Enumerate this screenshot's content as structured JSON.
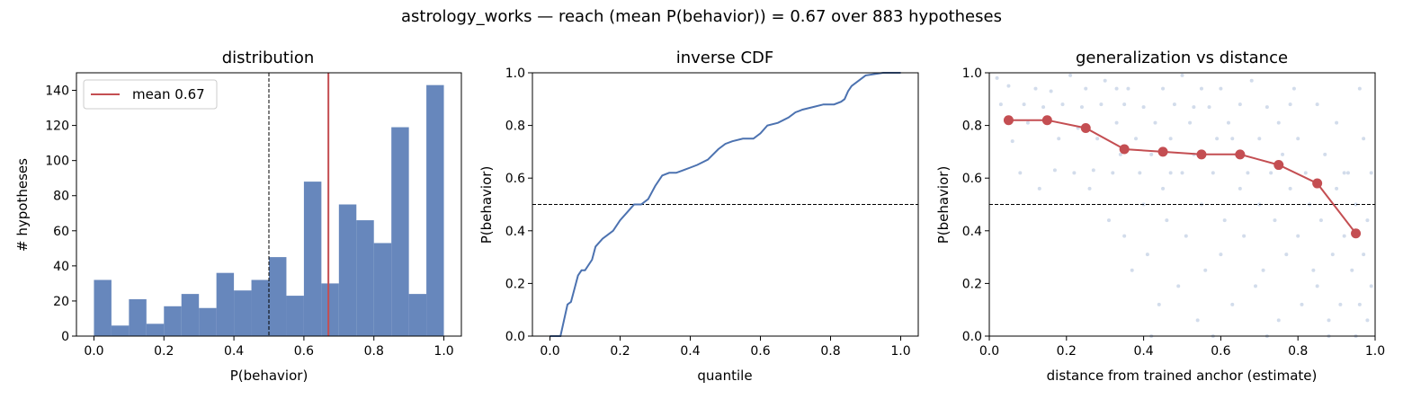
{
  "suptitle": "astrology_works  —  reach (mean P(behavior)) = 0.67  over 883 hypotheses",
  "colors": {
    "bar": "#4c72b0",
    "mean": "#c44e52",
    "line": "#4c72b0",
    "scatter": "#4c72b0",
    "binned": "#c44e52",
    "reference": "#000000"
  },
  "chart_data": [
    {
      "type": "bar",
      "title": "distribution",
      "xlabel": "P(behavior)",
      "ylabel": "# hypotheses",
      "xlim": [
        -0.05,
        1.05
      ],
      "ylim": [
        0,
        150
      ],
      "xticks": [
        "0.0",
        "0.2",
        "0.4",
        "0.6",
        "0.8",
        "1.0"
      ],
      "yticks": [
        "0",
        "20",
        "40",
        "60",
        "80",
        "100",
        "120",
        "140"
      ],
      "bin_edges": [
        0.0,
        0.05,
        0.1,
        0.15,
        0.2,
        0.25,
        0.3,
        0.35,
        0.4,
        0.45,
        0.5,
        0.55,
        0.6,
        0.65,
        0.7,
        0.75,
        0.8,
        0.85,
        0.9,
        0.95,
        1.0
      ],
      "values": [
        32,
        6,
        21,
        7,
        17,
        24,
        16,
        36,
        26,
        32,
        45,
        23,
        88,
        30,
        75,
        66,
        53,
        119,
        24,
        143
      ],
      "reference_line_x": 0.5,
      "mean_line": {
        "x": 0.67,
        "label": "mean 0.67"
      },
      "legend": "top-left",
      "grid": false
    },
    {
      "type": "line",
      "title": "inverse CDF",
      "xlabel": "quantile",
      "ylabel": "P(behavior)",
      "xlim": [
        -0.05,
        1.05
      ],
      "ylim": [
        0,
        1
      ],
      "xticks": [
        "0.0",
        "0.2",
        "0.4",
        "0.6",
        "0.8",
        "1.0"
      ],
      "yticks": [
        "0.0",
        "0.2",
        "0.4",
        "0.6",
        "0.8",
        "1.0"
      ],
      "x": [
        0.0,
        0.03,
        0.04,
        0.05,
        0.06,
        0.07,
        0.08,
        0.09,
        0.1,
        0.12,
        0.13,
        0.15,
        0.16,
        0.18,
        0.2,
        0.22,
        0.24,
        0.26,
        0.28,
        0.3,
        0.32,
        0.34,
        0.36,
        0.38,
        0.4,
        0.42,
        0.45,
        0.48,
        0.5,
        0.52,
        0.55,
        0.58,
        0.6,
        0.62,
        0.65,
        0.68,
        0.7,
        0.72,
        0.75,
        0.78,
        0.81,
        0.83,
        0.84,
        0.85,
        0.86,
        0.88,
        0.9,
        0.95,
        1.0
      ],
      "y": [
        0.0,
        0.0,
        0.06,
        0.12,
        0.13,
        0.18,
        0.23,
        0.25,
        0.25,
        0.29,
        0.34,
        0.37,
        0.38,
        0.4,
        0.44,
        0.47,
        0.5,
        0.5,
        0.52,
        0.57,
        0.61,
        0.62,
        0.62,
        0.63,
        0.64,
        0.65,
        0.67,
        0.71,
        0.73,
        0.74,
        0.75,
        0.75,
        0.77,
        0.8,
        0.81,
        0.83,
        0.85,
        0.86,
        0.87,
        0.88,
        0.88,
        0.89,
        0.9,
        0.93,
        0.95,
        0.97,
        0.99,
        1.0,
        1.0
      ],
      "reference_line_y": 0.5,
      "grid": false
    },
    {
      "type": "scatter",
      "title": "generalization vs distance",
      "xlabel": "distance from trained anchor (estimate)",
      "ylabel": "P(behavior)",
      "xlim": [
        0,
        1
      ],
      "ylim": [
        0,
        1
      ],
      "xticks": [
        "0.0",
        "0.2",
        "0.4",
        "0.6",
        "0.8",
        "1.0"
      ],
      "yticks": [
        "0.0",
        "0.2",
        "0.4",
        "0.6",
        "0.8",
        "1.0"
      ],
      "binned_mean": {
        "x": [
          0.05,
          0.15,
          0.25,
          0.35,
          0.45,
          0.55,
          0.65,
          0.75,
          0.85,
          0.95
        ],
        "y": [
          0.82,
          0.82,
          0.79,
          0.71,
          0.7,
          0.69,
          0.69,
          0.65,
          0.58,
          0.39
        ]
      },
      "scatter_points": [
        [
          0.02,
          0.98
        ],
        [
          0.03,
          0.88
        ],
        [
          0.05,
          0.95
        ],
        [
          0.06,
          0.74
        ],
        [
          0.08,
          0.62
        ],
        [
          0.09,
          0.88
        ],
        [
          0.1,
          0.81
        ],
        [
          0.12,
          0.94
        ],
        [
          0.13,
          0.56
        ],
        [
          0.14,
          0.87
        ],
        [
          0.16,
          0.93
        ],
        [
          0.17,
          0.63
        ],
        [
          0.18,
          0.75
        ],
        [
          0.19,
          0.88
        ],
        [
          0.21,
          0.99
        ],
        [
          0.22,
          0.62
        ],
        [
          0.23,
          0.79
        ],
        [
          0.24,
          0.87
        ],
        [
          0.25,
          0.94
        ],
        [
          0.26,
          0.56
        ],
        [
          0.27,
          0.63
        ],
        [
          0.28,
          0.75
        ],
        [
          0.29,
          0.88
        ],
        [
          0.3,
          0.97
        ],
        [
          0.31,
          0.44
        ],
        [
          0.32,
          0.62
        ],
        [
          0.33,
          0.81
        ],
        [
          0.34,
          0.69
        ],
        [
          0.35,
          0.88
        ],
        [
          0.35,
          0.38
        ],
        [
          0.36,
          0.94
        ],
        [
          0.37,
          0.25
        ],
        [
          0.38,
          0.75
        ],
        [
          0.39,
          0.62
        ],
        [
          0.4,
          0.5
        ],
        [
          0.4,
          0.87
        ],
        [
          0.41,
          0.31
        ],
        [
          0.42,
          0.69
        ],
        [
          0.43,
          0.81
        ],
        [
          0.44,
          0.12
        ],
        [
          0.45,
          0.94
        ],
        [
          0.45,
          0.56
        ],
        [
          0.46,
          0.44
        ],
        [
          0.47,
          0.75
        ],
        [
          0.48,
          0.88
        ],
        [
          0.49,
          0.19
        ],
        [
          0.5,
          0.62
        ],
        [
          0.5,
          0.99
        ],
        [
          0.51,
          0.38
        ],
        [
          0.52,
          0.81
        ],
        [
          0.53,
          0.69
        ],
        [
          0.54,
          0.06
        ],
        [
          0.55,
          0.94
        ],
        [
          0.55,
          0.5
        ],
        [
          0.56,
          0.25
        ],
        [
          0.57,
          0.87
        ],
        [
          0.58,
          0.62
        ],
        [
          0.59,
          0.75
        ],
        [
          0.6,
          0.31
        ],
        [
          0.6,
          0.94
        ],
        [
          0.61,
          0.44
        ],
        [
          0.62,
          0.81
        ],
        [
          0.63,
          0.12
        ],
        [
          0.64,
          0.69
        ],
        [
          0.65,
          0.56
        ],
        [
          0.65,
          0.88
        ],
        [
          0.66,
          0.38
        ],
        [
          0.67,
          0.62
        ],
        [
          0.68,
          0.97
        ],
        [
          0.69,
          0.19
        ],
        [
          0.7,
          0.75
        ],
        [
          0.7,
          0.5
        ],
        [
          0.71,
          0.25
        ],
        [
          0.72,
          0.87
        ],
        [
          0.73,
          0.62
        ],
        [
          0.74,
          0.44
        ],
        [
          0.75,
          0.81
        ],
        [
          0.75,
          0.06
        ],
        [
          0.76,
          0.69
        ],
        [
          0.77,
          0.31
        ],
        [
          0.78,
          0.56
        ],
        [
          0.79,
          0.94
        ],
        [
          0.8,
          0.38
        ],
        [
          0.8,
          0.75
        ],
        [
          0.81,
          0.12
        ],
        [
          0.82,
          0.62
        ],
        [
          0.83,
          0.5
        ],
        [
          0.84,
          0.25
        ],
        [
          0.85,
          0.88
        ],
        [
          0.85,
          0.19
        ],
        [
          0.86,
          0.44
        ],
        [
          0.87,
          0.69
        ],
        [
          0.88,
          0.06
        ],
        [
          0.89,
          0.31
        ],
        [
          0.9,
          0.56
        ],
        [
          0.9,
          0.81
        ],
        [
          0.91,
          0.12
        ],
        [
          0.92,
          0.38
        ],
        [
          0.93,
          0.62
        ],
        [
          0.94,
          0.25
        ],
        [
          0.95,
          0.0
        ],
        [
          0.95,
          0.5
        ],
        [
          0.96,
          0.94
        ],
        [
          0.96,
          0.12
        ],
        [
          0.97,
          0.75
        ],
        [
          0.97,
          0.31
        ],
        [
          0.98,
          0.06
        ],
        [
          0.98,
          0.44
        ],
        [
          0.99,
          0.19
        ],
        [
          0.99,
          0.62
        ],
        [
          0.42,
          0.0
        ],
        [
          0.58,
          0.0
        ],
        [
          0.72,
          0.0
        ],
        [
          0.88,
          0.0
        ],
        [
          0.33,
          0.94
        ],
        [
          0.47,
          0.62
        ],
        [
          0.53,
          0.87
        ],
        [
          0.63,
          0.75
        ],
        [
          0.78,
          0.88
        ],
        [
          0.92,
          0.62
        ]
      ],
      "reference_line_y": 0.5,
      "grid": false
    }
  ]
}
